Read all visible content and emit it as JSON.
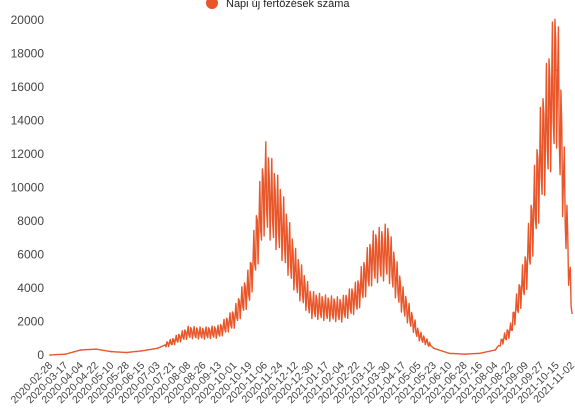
{
  "chart_data": {
    "type": "line",
    "legend": {
      "label": "Napi új fertőzések száma",
      "position": "top-center",
      "marker": "circle"
    },
    "series": [
      {
        "name": "Napi új fertőzések száma",
        "color": "#e8562a",
        "x": [
          "2020-02-28",
          "2020-03-17",
          "2020-04-04",
          "2020-04-22",
          "2020-05-10",
          "2020-05-28",
          "2020-06-15",
          "2020-07-03",
          "2020-07-21",
          "2020-08-08",
          "2020-08-26",
          "2020-09-13",
          "2020-10-01",
          "2020-10-19",
          "2020-11-06",
          "2020-11-24",
          "2020-12-12",
          "2020-12-30",
          "2021-01-17",
          "2021-02-04",
          "2021-02-22",
          "2021-03-12",
          "2021-03-30",
          "2021-04-17",
          "2021-05-05",
          "2021-05-23",
          "2021-06-10",
          "2021-06-28",
          "2021-07-16",
          "2021-08-04",
          "2021-08-22",
          "2021-09-09",
          "2021-09-27",
          "2021-10-15",
          "2021-11-02"
        ],
        "values": [
          0,
          50,
          300,
          350,
          200,
          150,
          250,
          400,
          800,
          1350,
          1300,
          1400,
          2200,
          4200,
          10100,
          8100,
          5000,
          3000,
          2800,
          2700,
          3500,
          5800,
          6200,
          3200,
          1200,
          400,
          100,
          50,
          100,
          300,
          1500,
          5000,
          12000,
          17000,
          2500
        ]
      }
    ],
    "x_ticks": [
      "2020-02-28",
      "2020-03-17",
      "2020-04-04",
      "2020-04-22",
      "2020-05-10",
      "2020-05-28",
      "2020-06-15",
      "2020-07-03",
      "2020-07-21",
      "2020-08-08",
      "2020-08-26",
      "2020-09-13",
      "2020-10-01",
      "2020-10-19",
      "2020-11-06",
      "2020-11-24",
      "2020-12-12",
      "2020-12-30",
      "2021-01-17",
      "2021-02-04",
      "2021-02-22",
      "2021-03-12",
      "2021-03-30",
      "2021-04-17",
      "2021-05-05",
      "2021-05-23",
      "2021-06-10",
      "2021-06-28",
      "2021-07-16",
      "2021-08-04",
      "2021-08-22",
      "2021-09-09",
      "2021-09-27",
      "2021-10-15",
      "2021-11-02"
    ],
    "y_ticks": [
      0,
      2000,
      4000,
      6000,
      8000,
      10000,
      12000,
      14000,
      16000,
      18000,
      20000
    ],
    "ylim": [
      0,
      20000
    ],
    "grid": false,
    "title": "",
    "xlabel": "",
    "ylabel": ""
  }
}
